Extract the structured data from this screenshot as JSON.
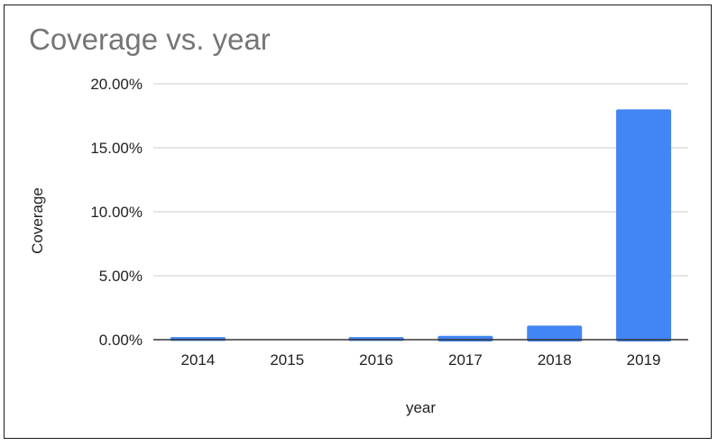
{
  "chart_data": {
    "type": "bar",
    "title": "Coverage vs. year",
    "xlabel": "year",
    "ylabel": "Coverage",
    "categories": [
      "2014",
      "2015",
      "2016",
      "2017",
      "2018",
      "2019"
    ],
    "values": [
      0.002,
      0.0,
      0.002,
      0.003,
      0.011,
      0.18
    ],
    "ylim": [
      0,
      0.2
    ],
    "yticks": [
      0,
      0.05,
      0.1,
      0.15,
      0.2
    ],
    "ytick_labels": [
      "0.00%",
      "5.00%",
      "10.00%",
      "15.00%",
      "20.00%"
    ],
    "grid": true,
    "legend": "none",
    "colors": {
      "bar": "#4285f4",
      "gridline": "#cccccc",
      "baseline": "#333333",
      "title": "#757575"
    }
  }
}
